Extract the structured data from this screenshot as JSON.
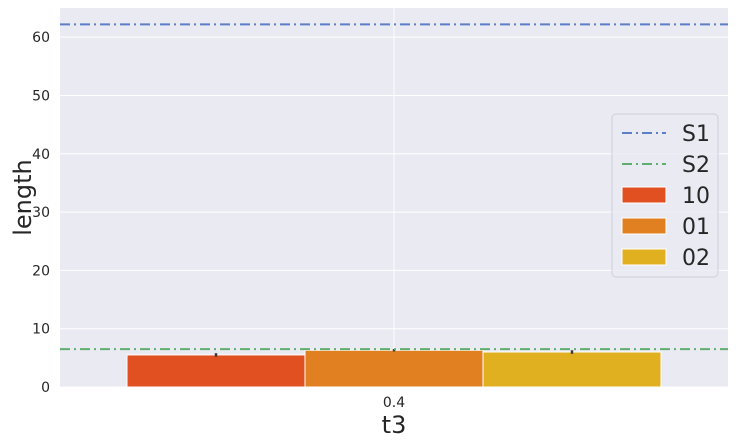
{
  "chart_data": {
    "type": "bar",
    "xlabel": "t3",
    "ylabel": "length",
    "categories": [
      "0.4"
    ],
    "ylim": [
      0,
      65
    ],
    "yticks": [
      0,
      10,
      20,
      30,
      40,
      50,
      60
    ],
    "grid": true,
    "legend_position": "right",
    "series": [
      {
        "name": "10",
        "values": [
          5.5
        ],
        "error": [
          0.3
        ],
        "color": "#e05020"
      },
      {
        "name": "01",
        "values": [
          6.3
        ],
        "error": [
          0.2
        ],
        "color": "#e08020"
      },
      {
        "name": "02",
        "values": [
          6.0
        ],
        "error": [
          0.3
        ],
        "color": "#e0b020"
      }
    ],
    "reference_lines": [
      {
        "name": "S1",
        "value": 62.2,
        "color": "#5a7ec8",
        "style": "dashdot"
      },
      {
        "name": "S2",
        "value": 6.5,
        "color": "#5fae6e",
        "style": "dashdot"
      }
    ]
  }
}
